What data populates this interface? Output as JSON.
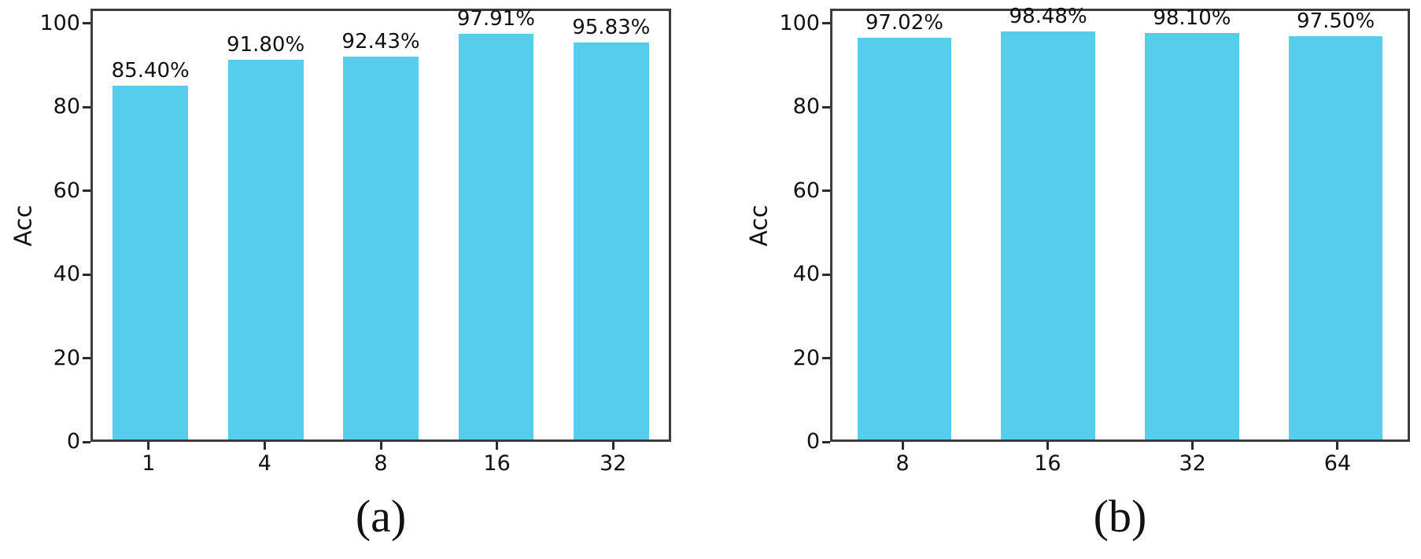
{
  "figure": {
    "background": "#ffffff",
    "bar_color": "#56cdea",
    "axis_color": "#3c3c3c",
    "tick_color": "#2b2b2b",
    "text_color": "#111111"
  },
  "chart_data": [
    {
      "type": "bar",
      "caption": "(a)",
      "title": "",
      "xlabel": "",
      "ylabel": "Acc",
      "categories": [
        "1",
        "4",
        "8",
        "16",
        "32"
      ],
      "values": [
        85.4,
        91.8,
        92.43,
        97.91,
        95.83
      ],
      "bar_labels": [
        "85.40%",
        "91.80%",
        "92.43%",
        "97.91%",
        "95.83%"
      ],
      "yticks": [
        0,
        20,
        40,
        60,
        80,
        100
      ],
      "ytick_labels": [
        "0",
        "20",
        "40",
        "60",
        "80",
        "100"
      ],
      "ylim": [
        0,
        103.5
      ],
      "grid": false,
      "legend": null
    },
    {
      "type": "bar",
      "caption": "(b)",
      "title": "",
      "xlabel": "",
      "ylabel": "Acc",
      "categories": [
        "8",
        "16",
        "32",
        "64"
      ],
      "values": [
        97.02,
        98.48,
        98.1,
        97.5
      ],
      "bar_labels": [
        "97.02%",
        "98.48%",
        "98.10%",
        "97.50%"
      ],
      "yticks": [
        0,
        20,
        40,
        60,
        80,
        100
      ],
      "ytick_labels": [
        "0",
        "20",
        "40",
        "60",
        "80",
        "100"
      ],
      "ylim": [
        0,
        103.5
      ],
      "grid": false,
      "legend": null
    }
  ]
}
